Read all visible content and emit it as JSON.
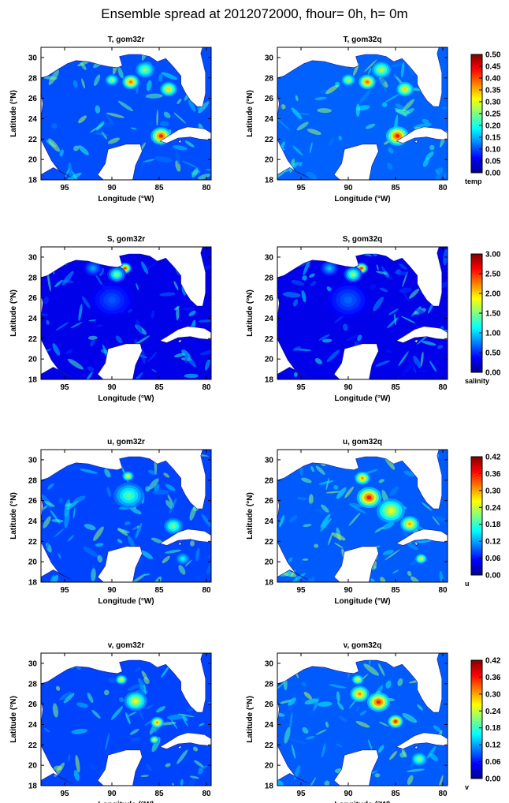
{
  "title": "Ensemble spread at 2012072000, fhour= 0h, h= 0m",
  "colors": {
    "land": "#ffffff",
    "ocean_low": "#00008f",
    "colormap": [
      "#00008f",
      "#0000ff",
      "#0080ff",
      "#00ffff",
      "#80ff80",
      "#ffff00",
      "#ff8000",
      "#ff0000",
      "#800000"
    ]
  },
  "chart_data": [
    {
      "type": "heatmap",
      "title": "T, gom32r",
      "xlabel": "Longitude (°W)",
      "ylabel": "Latitude (°N)",
      "xticks": [
        "95",
        "90",
        "85",
        "80"
      ],
      "yticks": [
        "18",
        "20",
        "22",
        "24",
        "26",
        "28",
        "30"
      ],
      "xlim": [
        97.5,
        79.5
      ],
      "ylim": [
        18,
        31
      ],
      "variable": "temp",
      "clim": [
        0,
        0.5
      ],
      "hotspots": [
        {
          "lon": 84.8,
          "lat": 22.3,
          "value": 0.5,
          "r": 1.1
        },
        {
          "lon": 88,
          "lat": 27.6,
          "value": 0.45,
          "r": 0.9
        },
        {
          "lon": 84,
          "lat": 26.9,
          "value": 0.38,
          "r": 0.9
        },
        {
          "lon": 86.5,
          "lat": 28.8,
          "value": 0.3,
          "r": 1.0
        },
        {
          "lon": 90,
          "lat": 27.8,
          "value": 0.3,
          "r": 0.7
        }
      ],
      "background": 0.1
    },
    {
      "type": "heatmap",
      "title": "T, gom32q",
      "xlabel": "Longitude (°W)",
      "ylabel": "Latitude (°N)",
      "xticks": [
        "95",
        "90",
        "85",
        "80"
      ],
      "yticks": [
        "18",
        "20",
        "22",
        "24",
        "26",
        "28",
        "30"
      ],
      "xlim": [
        97.5,
        79.5
      ],
      "ylim": [
        18,
        31
      ],
      "variable": "temp",
      "clim": [
        0,
        0.5
      ],
      "hotspots": [
        {
          "lon": 84.8,
          "lat": 22.3,
          "value": 0.5,
          "r": 1.2
        },
        {
          "lon": 88,
          "lat": 27.6,
          "value": 0.45,
          "r": 0.9
        },
        {
          "lon": 84,
          "lat": 26.9,
          "value": 0.38,
          "r": 0.9
        },
        {
          "lon": 86.5,
          "lat": 28.8,
          "value": 0.32,
          "r": 1.0
        },
        {
          "lon": 90,
          "lat": 27.8,
          "value": 0.32,
          "r": 0.7
        }
      ],
      "background": 0.11
    },
    {
      "type": "heatmap",
      "title": "S, gom32r",
      "xlabel": "Longitude (°W)",
      "ylabel": "Latitude (°N)",
      "xticks": [
        "95",
        "90",
        "85",
        "80"
      ],
      "yticks": [
        "18",
        "20",
        "22",
        "24",
        "26",
        "28",
        "30"
      ],
      "xlim": [
        97.5,
        79.5
      ],
      "ylim": [
        18,
        31
      ],
      "variable": "salinity",
      "clim": [
        0,
        3
      ],
      "hotspots": [
        {
          "lon": 88.6,
          "lat": 28.9,
          "value": 3,
          "r": 0.7
        },
        {
          "lon": 89.5,
          "lat": 28.3,
          "value": 1.8,
          "r": 1.0
        },
        {
          "lon": 92,
          "lat": 28.9,
          "value": 1.0,
          "r": 1.0
        },
        {
          "lon": 90,
          "lat": 25.8,
          "value": 0.7,
          "r": 2.2
        }
      ],
      "background": 0.3
    },
    {
      "type": "heatmap",
      "title": "S, gom32q",
      "xlabel": "Longitude (°W)",
      "ylabel": "Latitude (°N)",
      "xticks": [
        "95",
        "90",
        "85",
        "80"
      ],
      "yticks": [
        "18",
        "20",
        "22",
        "24",
        "26",
        "28",
        "30"
      ],
      "xlim": [
        97.5,
        79.5
      ],
      "ylim": [
        18,
        31
      ],
      "variable": "salinity",
      "clim": [
        0,
        3
      ],
      "hotspots": [
        {
          "lon": 88.6,
          "lat": 28.9,
          "value": 3,
          "r": 0.7
        },
        {
          "lon": 89.5,
          "lat": 28.3,
          "value": 1.9,
          "r": 1.0
        },
        {
          "lon": 92,
          "lat": 28.9,
          "value": 1.1,
          "r": 1.0
        },
        {
          "lon": 90,
          "lat": 25.8,
          "value": 0.75,
          "r": 2.2
        }
      ],
      "background": 0.3
    },
    {
      "type": "heatmap",
      "title": "u, gom32r",
      "xlabel": "Longitude (°W)",
      "ylabel": "Latitude (°N)",
      "xticks": [
        "95",
        "90",
        "85",
        "80"
      ],
      "yticks": [
        "18",
        "20",
        "22",
        "24",
        "26",
        "28",
        "30"
      ],
      "xlim": [
        97.5,
        79.5
      ],
      "ylim": [
        18,
        31
      ],
      "variable": "u",
      "clim": [
        0,
        0.42
      ],
      "hotspots": [
        {
          "lon": 88.2,
          "lat": 26.5,
          "value": 0.22,
          "r": 1.6
        },
        {
          "lon": 88.3,
          "lat": 28.4,
          "value": 0.3,
          "r": 0.6
        },
        {
          "lon": 83.5,
          "lat": 23.5,
          "value": 0.24,
          "r": 1.0
        },
        {
          "lon": 82.5,
          "lat": 20.3,
          "value": 0.18,
          "r": 0.7
        }
      ],
      "background": 0.08
    },
    {
      "type": "heatmap",
      "title": "u, gom32q",
      "xlabel": "Longitude (°W)",
      "ylabel": "Latitude (°N)",
      "xticks": [
        "95",
        "90",
        "85",
        "80"
      ],
      "yticks": [
        "18",
        "20",
        "22",
        "24",
        "26",
        "28",
        "30"
      ],
      "xlim": [
        97.5,
        79.5
      ],
      "ylim": [
        18,
        31
      ],
      "variable": "u",
      "clim": [
        0,
        0.42
      ],
      "hotspots": [
        {
          "lon": 87.8,
          "lat": 26.3,
          "value": 0.42,
          "r": 1.3
        },
        {
          "lon": 88.5,
          "lat": 28.2,
          "value": 0.36,
          "r": 0.8
        },
        {
          "lon": 85.5,
          "lat": 25.0,
          "value": 0.3,
          "r": 1.5
        },
        {
          "lon": 83.5,
          "lat": 23.7,
          "value": 0.34,
          "r": 1.0
        },
        {
          "lon": 82.3,
          "lat": 20.3,
          "value": 0.3,
          "r": 0.6
        }
      ],
      "background": 0.09
    },
    {
      "type": "heatmap",
      "title": "v, gom32r",
      "xlabel": "Longitude (°W)",
      "ylabel": "Latitude (°N)",
      "xticks": [
        "95",
        "90",
        "85",
        "80"
      ],
      "yticks": [
        "18",
        "20",
        "22",
        "24",
        "26",
        "28",
        "30"
      ],
      "xlim": [
        97.5,
        79.5
      ],
      "ylim": [
        18,
        31
      ],
      "variable": "v",
      "clim": [
        0,
        0.42
      ],
      "hotspots": [
        {
          "lon": 87.5,
          "lat": 26.3,
          "value": 0.3,
          "r": 1.2
        },
        {
          "lon": 89,
          "lat": 28.4,
          "value": 0.3,
          "r": 0.6
        },
        {
          "lon": 85.2,
          "lat": 24.2,
          "value": 0.36,
          "r": 0.7
        },
        {
          "lon": 85.5,
          "lat": 22.5,
          "value": 0.3,
          "r": 0.5
        }
      ],
      "background": 0.08
    },
    {
      "type": "heatmap",
      "title": "v, gom32q",
      "xlabel": "Longitude (°W)",
      "ylabel": "Latitude (°N)",
      "xticks": [
        "95",
        "90",
        "85",
        "80"
      ],
      "yticks": [
        "18",
        "20",
        "22",
        "24",
        "26",
        "28",
        "30"
      ],
      "xlim": [
        97.5,
        79.5
      ],
      "ylim": [
        18,
        31
      ],
      "variable": "v",
      "clim": [
        0,
        0.42
      ],
      "hotspots": [
        {
          "lon": 86.8,
          "lat": 26.2,
          "value": 0.42,
          "r": 1.2
        },
        {
          "lon": 88.8,
          "lat": 27.0,
          "value": 0.36,
          "r": 1.0
        },
        {
          "lon": 85.0,
          "lat": 24.3,
          "value": 0.42,
          "r": 0.8
        },
        {
          "lon": 89,
          "lat": 28.4,
          "value": 0.3,
          "r": 0.6
        },
        {
          "lon": 82.5,
          "lat": 20.6,
          "value": 0.24,
          "r": 0.8
        }
      ],
      "background": 0.09
    }
  ],
  "colorbars": [
    {
      "label": "temp",
      "ticks": [
        "0.00",
        "0.05",
        "0.10",
        "0.15",
        "0.20",
        "0.25",
        "0.30",
        "0.35",
        "0.40",
        "0.45",
        "0.50"
      ]
    },
    {
      "label": "salinity",
      "ticks": [
        "0.00",
        "0.50",
        "1.00",
        "1.50",
        "2.00",
        "2.50",
        "3.00"
      ]
    },
    {
      "label": "u",
      "ticks": [
        "0.00",
        "0.06",
        "0.12",
        "0.18",
        "0.24",
        "0.30",
        "0.36",
        "0.42"
      ]
    },
    {
      "label": "v",
      "ticks": [
        "0.00",
        "0.06",
        "0.12",
        "0.18",
        "0.24",
        "0.30",
        "0.36",
        "0.42"
      ]
    }
  ]
}
